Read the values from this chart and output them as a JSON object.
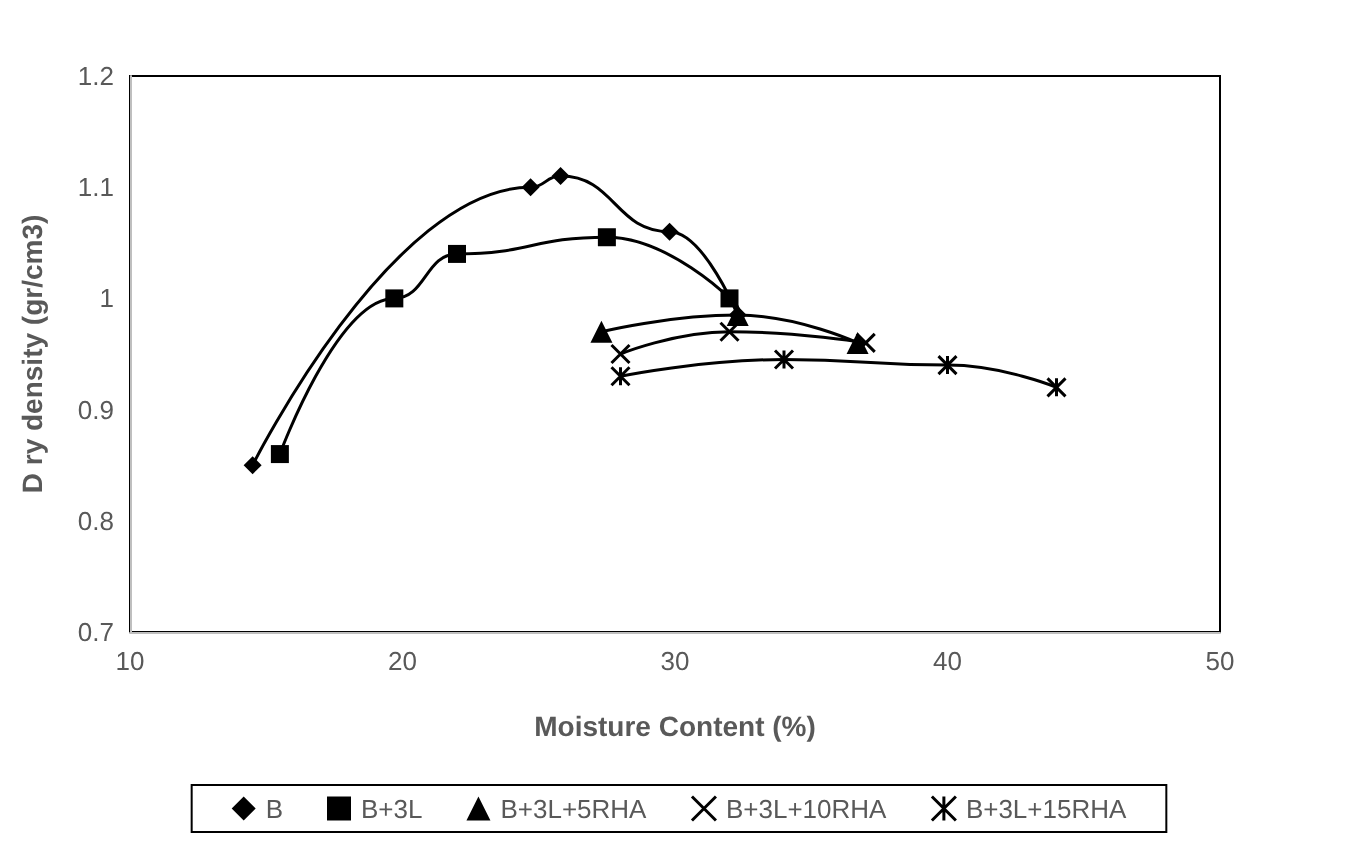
{
  "chart_data": {
    "type": "line",
    "xlabel": "Moisture Content (%)",
    "ylabel": "D ry density (gr/cm3)",
    "xlim": [
      10,
      50
    ],
    "xticks": [
      10,
      20,
      30,
      40,
      50
    ],
    "ylim": [
      0.7,
      1.2
    ],
    "yticks": [
      0.7,
      0.8,
      0.9,
      1,
      1.1,
      1.2
    ],
    "grid": false,
    "legend": "bottom",
    "series": [
      {
        "name": "B",
        "color": "#000000",
        "marker": "diamond",
        "x": [
          14.5,
          24.7,
          25.8,
          29.8,
          32.3
        ],
        "values": [
          0.85,
          1.1,
          1.11,
          1.06,
          0.985
        ]
      },
      {
        "name": "B+3L",
        "color": "#000000",
        "marker": "square",
        "x": [
          15.5,
          19.7,
          22,
          27.5,
          32
        ],
        "values": [
          0.86,
          1.0,
          1.04,
          1.055,
          1.0
        ]
      },
      {
        "name": "B+3L+5RHA",
        "color": "#000000",
        "marker": "triangle",
        "x": [
          27.3,
          32.3,
          36.7
        ],
        "values": [
          0.97,
          0.985,
          0.96
        ]
      },
      {
        "name": "B+3L+10RHA",
        "color": "#000000",
        "marker": "cross",
        "x": [
          28,
          32,
          37
        ],
        "values": [
          0.95,
          0.97,
          0.96
        ]
      },
      {
        "name": "B+3L+15RHA",
        "color": "#000000",
        "marker": "cross",
        "x": [
          28,
          34,
          40,
          44
        ],
        "values": [
          0.93,
          0.945,
          0.94,
          0.92
        ]
      }
    ]
  }
}
